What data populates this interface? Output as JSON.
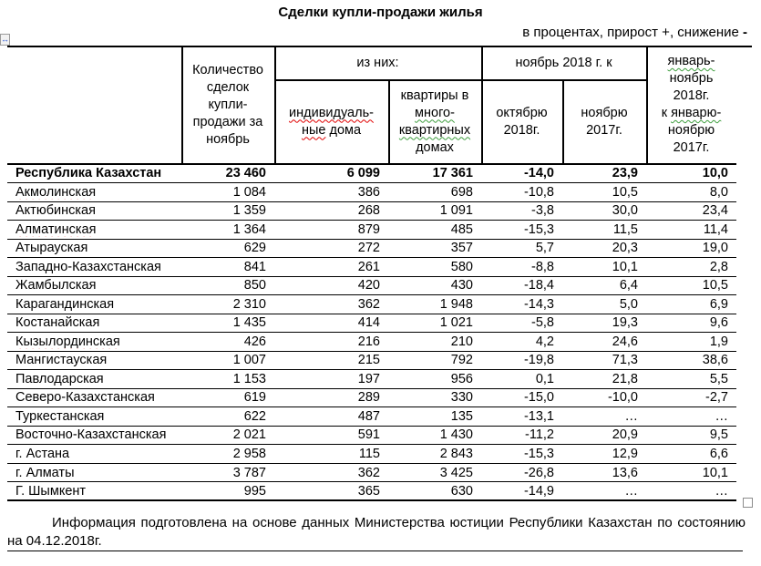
{
  "title": "Сделки купли-продажи жилья",
  "subtitle": {
    "text": "в процентах, прирост +, снижение",
    "dash": "-"
  },
  "icons": {
    "move_handle": "↔"
  },
  "colors": {
    "border": "#000000",
    "spell_red": "#e00000",
    "grammar_green": "#3f9e3f",
    "handle_blue": "#2f5bd6"
  },
  "table": {
    "header": {
      "count": "Количество\nсделок\nкупли-\nпродажи за\nноябрь",
      "iznih": "из них:",
      "ind1": "индивидуаль-",
      "ind2": "ные",
      "ind3": " дома",
      "kv1": "квартиры в",
      "kv2": "много-",
      "kv3": "квартирных",
      "kv4": "домах",
      "nov_k": "ноябрь 2018 г. к",
      "okt": "октябрю\n2018г.",
      "noy": "ноябрю\n2017г.",
      "jan1": "январь-",
      "jan2": "ноябрь",
      "jan3": "2018г.",
      "jan4a": "к ",
      "jan4b": "январю-",
      "jan5": "ноябрю",
      "jan6": "2017г."
    },
    "rows": [
      {
        "region": "Республика Казахстан",
        "bold": true,
        "wavy": false,
        "total": "23 460",
        "houses": "6 099",
        "apartments": "17 361",
        "to_oct": "-14,0",
        "to_nov": "23,9",
        "jan_nov": "10,0"
      },
      {
        "region": "Акмолинская",
        "bold": false,
        "wavy": true,
        "total": "1 084",
        "houses": "386",
        "apartments": "698",
        "to_oct": "-10,8",
        "to_nov": "10,5",
        "jan_nov": "8,0"
      },
      {
        "region": "Актюбинская",
        "bold": false,
        "wavy": false,
        "total": "1 359",
        "houses": "268",
        "apartments": "1 091",
        "to_oct": "-3,8",
        "to_nov": "30,0",
        "jan_nov": "23,4"
      },
      {
        "region": "Алматинская",
        "bold": false,
        "wavy": true,
        "total": "1 364",
        "houses": "879",
        "apartments": "485",
        "to_oct": "-15,3",
        "to_nov": "11,5",
        "jan_nov": "11,4"
      },
      {
        "region": "Атырауская",
        "bold": false,
        "wavy": true,
        "total": "629",
        "houses": "272",
        "apartments": "357",
        "to_oct": "5,7",
        "to_nov": "20,3",
        "jan_nov": "19,0"
      },
      {
        "region": "Западно-Казахстанская",
        "bold": false,
        "wavy": false,
        "total": "841",
        "houses": "261",
        "apartments": "580",
        "to_oct": "-8,8",
        "to_nov": "10,1",
        "jan_nov": "2,8"
      },
      {
        "region": "Жамбылская",
        "bold": false,
        "wavy": true,
        "total": "850",
        "houses": "420",
        "apartments": "430",
        "to_oct": "-18,4",
        "to_nov": "6,4",
        "jan_nov": "10,5"
      },
      {
        "region": "Карагандинская",
        "bold": false,
        "wavy": false,
        "total": "2 310",
        "houses": "362",
        "apartments": "1 948",
        "to_oct": "-14,3",
        "to_nov": "5,0",
        "jan_nov": "6,9"
      },
      {
        "region": "Костанайская",
        "bold": false,
        "wavy": true,
        "total": "1 435",
        "houses": "414",
        "apartments": "1 021",
        "to_oct": "-5,8",
        "to_nov": "19,3",
        "jan_nov": "9,6"
      },
      {
        "region": "Кызылординская",
        "bold": false,
        "wavy": true,
        "total": "426",
        "houses": "216",
        "apartments": "210",
        "to_oct": "4,2",
        "to_nov": "24,6",
        "jan_nov": "1,9"
      },
      {
        "region": "Мангистауская",
        "bold": false,
        "wavy": true,
        "total": "1 007",
        "houses": "215",
        "apartments": "792",
        "to_oct": "-19,8",
        "to_nov": "71,3",
        "jan_nov": "38,6"
      },
      {
        "region": "Павлодарская",
        "bold": false,
        "wavy": false,
        "total": "1 153",
        "houses": "197",
        "apartments": "956",
        "to_oct": "0,1",
        "to_nov": "21,8",
        "jan_nov": "5,5"
      },
      {
        "region": "Северо-Казахстанская",
        "bold": false,
        "wavy": false,
        "total": "619",
        "houses": "289",
        "apartments": "330",
        "to_oct": "-15,0",
        "to_nov": "-10,0",
        "jan_nov": "-2,7"
      },
      {
        "region": "Туркестанская",
        "bold": false,
        "wavy": false,
        "total": "622",
        "houses": "487",
        "apartments": "135",
        "to_oct": "-13,1",
        "to_nov": "…",
        "jan_nov": "…"
      },
      {
        "region": "Восточно-Казахстанская",
        "bold": false,
        "wavy": false,
        "total": "2 021",
        "houses": "591",
        "apartments": "1 430",
        "to_oct": "-11,2",
        "to_nov": "20,9",
        "jan_nov": "9,5"
      },
      {
        "region": "г. Астана",
        "bold": false,
        "wavy": false,
        "total": "2 958",
        "houses": "115",
        "apartments": "2 843",
        "to_oct": "-15,3",
        "to_nov": "12,9",
        "jan_nov": "6,6"
      },
      {
        "region": "г. Алматы",
        "bold": false,
        "wavy": false,
        "total": "3 787",
        "houses": "362",
        "apartments": "3 425",
        "to_oct": "-26,8",
        "to_nov": "13,6",
        "jan_nov": "10,1"
      },
      {
        "region": "Г. Шымкент",
        "bold": false,
        "wavy": false,
        "total": "995",
        "houses": "365",
        "apartments": "630",
        "to_oct": "-14,9",
        "to_nov": "…",
        "jan_nov": "…"
      }
    ]
  },
  "footer": {
    "line1": "Информация подготовлена на основе данных Министерства юстиции Республики Казахстан по состоянию",
    "line2": "на 04.12.2018г."
  }
}
